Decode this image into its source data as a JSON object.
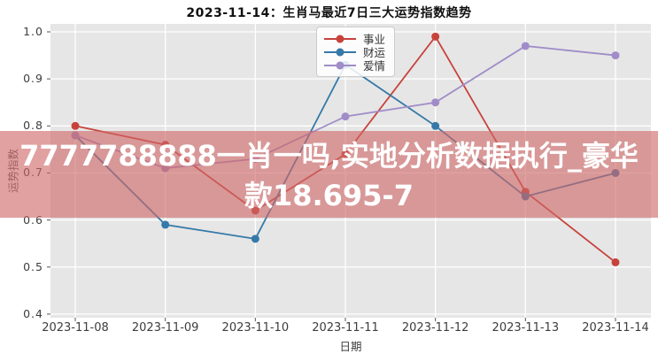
{
  "chart_data": {
    "type": "line",
    "title": "2023-11-14：生肖马最近7日三大运势指数趋势",
    "xlabel": "日期",
    "ylabel": "运势指数",
    "categories": [
      "2023-11-08",
      "2023-11-09",
      "2023-11-10",
      "2023-11-11",
      "2023-11-12",
      "2023-11-13",
      "2023-11-14"
    ],
    "series": [
      {
        "name": "事业",
        "color": "#c8423c",
        "values": [
          0.8,
          0.76,
          0.62,
          0.74,
          0.99,
          0.66,
          0.51
        ]
      },
      {
        "name": "财运",
        "color": "#3579a8",
        "values": [
          0.78,
          0.59,
          0.56,
          0.93,
          0.8,
          0.65,
          0.7
        ]
      },
      {
        "name": "爱情",
        "color": "#a08cc8",
        "values": [
          0.78,
          0.71,
          0.73,
          0.82,
          0.85,
          0.97,
          0.95
        ]
      }
    ],
    "ylim": [
      0.4,
      1.0
    ],
    "yticks": [
      "1.0",
      "0.9",
      "0.8",
      "0.7",
      "0.6",
      "0.5",
      "0.4"
    ],
    "grid": true,
    "legend_position": "upper center",
    "plot_bg_color": "#e6e6e6",
    "gridline_color": "#ffffff"
  },
  "watermark": {
    "line1": "7777788888一肖一吗,实地分析数据执行_豪华",
    "line2": "款18.695-7",
    "bg_color": "rgba(206,104,104,0.62)",
    "text_color": "#ffffff"
  }
}
